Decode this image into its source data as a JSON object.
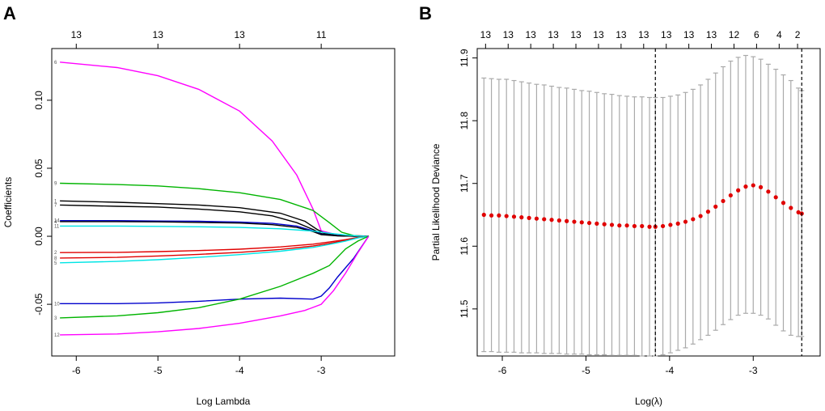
{
  "chart_data": [
    {
      "panel_label": "A",
      "type": "line",
      "title": "",
      "xlabel": "Log Lambda",
      "ylabel": "Coefficients",
      "xlim": [
        -6.3,
        -2.1
      ],
      "ylim": [
        -0.088,
        0.138
      ],
      "x_ticks": [
        -6,
        -5,
        -4,
        -3
      ],
      "x_tick_labels": [
        "-6",
        "-5",
        "-4",
        "-3"
      ],
      "y_ticks": [
        -0.05,
        0.0,
        0.05,
        0.1
      ],
      "y_tick_labels": [
        "-0.05",
        "0.00",
        "0.05",
        "0.10"
      ],
      "top_axis": {
        "ticks": [
          -6,
          -5,
          -4,
          -3
        ],
        "labels": [
          "13",
          "13",
          "13",
          "11"
        ]
      },
      "series": [
        {
          "name": "6",
          "color": "#ff00ff",
          "x": [
            -6.2,
            -5.5,
            -5.0,
            -4.5,
            -4.0,
            -3.6,
            -3.3,
            -3.1,
            -3.0,
            -2.8,
            -2.6,
            -2.42
          ],
          "values": [
            0.128,
            0.124,
            0.118,
            0.108,
            0.092,
            0.07,
            0.045,
            0.02,
            0.004,
            0.001,
            0.0005,
            0.0
          ]
        },
        {
          "name": "9",
          "color": "#00b400",
          "x": [
            -6.2,
            -5.5,
            -5.0,
            -4.5,
            -4.0,
            -3.5,
            -3.1,
            -2.9,
            -2.75,
            -2.6,
            -2.42
          ],
          "values": [
            0.039,
            0.038,
            0.037,
            0.035,
            0.032,
            0.027,
            0.019,
            0.01,
            0.003,
            0.0005,
            0.0
          ]
        },
        {
          "name": "1",
          "color": "#000000",
          "x": [
            -6.2,
            -5.5,
            -5.0,
            -4.5,
            -4.0,
            -3.5,
            -3.2,
            -3.05,
            -2.95,
            -2.8,
            -2.6,
            -2.42
          ],
          "values": [
            0.026,
            0.025,
            0.024,
            0.023,
            0.021,
            0.017,
            0.011,
            0.005,
            0.002,
            0.0005,
            0.0001,
            0.0
          ]
        },
        {
          "name": "7",
          "color": "#000000",
          "x": [
            -6.2,
            -5.5,
            -5.0,
            -4.5,
            -4.0,
            -3.6,
            -3.3,
            -3.1,
            -3.0,
            -2.8,
            -2.6,
            -2.42
          ],
          "values": [
            0.023,
            0.022,
            0.0215,
            0.02,
            0.018,
            0.015,
            0.01,
            0.005,
            0.002,
            0.0005,
            0.0001,
            0.0
          ]
        },
        {
          "name": "14",
          "color": "#0000cc",
          "x": [
            -6.2,
            -5.5,
            -5.0,
            -4.5,
            -4.0,
            -3.6,
            -3.3,
            -3.1,
            -3.0,
            -2.8,
            -2.6,
            -2.42
          ],
          "values": [
            0.0115,
            0.0115,
            0.0112,
            0.011,
            0.0105,
            0.0095,
            0.0075,
            0.004,
            0.0015,
            0.0004,
            0.0001,
            0.0
          ]
        },
        {
          "name": "4",
          "color": "#000000",
          "x": [
            -6.2,
            -5.5,
            -5.0,
            -4.5,
            -4.0,
            -3.6,
            -3.3,
            -3.1,
            -3.0,
            -2.8,
            -2.6,
            -2.42
          ],
          "values": [
            0.0108,
            0.0108,
            0.0106,
            0.0102,
            0.0097,
            0.0085,
            0.0065,
            0.0035,
            0.0012,
            0.0003,
            0.0001,
            0.0
          ]
        },
        {
          "name": "11",
          "color": "#00e5e5",
          "x": [
            -6.2,
            -5.5,
            -5.0,
            -4.5,
            -4.0,
            -3.5,
            -3.1,
            -2.9,
            -2.7,
            -2.55,
            -2.42
          ],
          "values": [
            0.0075,
            0.0075,
            0.0073,
            0.007,
            0.0065,
            0.0055,
            0.0038,
            0.0022,
            0.0009,
            0.0002,
            0.0
          ]
        },
        {
          "name": "2",
          "color": "#e00000",
          "x": [
            -6.2,
            -5.5,
            -5.0,
            -4.5,
            -4.0,
            -3.5,
            -3.1,
            -2.9,
            -2.7,
            -2.55,
            -2.42
          ],
          "values": [
            -0.012,
            -0.0118,
            -0.0113,
            -0.0105,
            -0.0095,
            -0.0078,
            -0.0058,
            -0.0042,
            -0.0025,
            -0.0008,
            0.0
          ]
        },
        {
          "name": "8",
          "color": "#e00000",
          "x": [
            -6.2,
            -5.5,
            -5.0,
            -4.5,
            -4.0,
            -3.5,
            -3.1,
            -2.9,
            -2.7,
            -2.55,
            -2.42
          ],
          "values": [
            -0.016,
            -0.0155,
            -0.0145,
            -0.0133,
            -0.0118,
            -0.0097,
            -0.0072,
            -0.0052,
            -0.003,
            -0.001,
            0.0
          ]
        },
        {
          "name": "5",
          "color": "#00e5e5",
          "x": [
            -6.2,
            -5.5,
            -5.0,
            -4.5,
            -4.0,
            -3.5,
            -3.1,
            -2.9,
            -2.7,
            -2.55,
            -2.42
          ],
          "values": [
            -0.0195,
            -0.0185,
            -0.0172,
            -0.0155,
            -0.0135,
            -0.011,
            -0.0082,
            -0.006,
            -0.0035,
            -0.0012,
            0.0
          ]
        },
        {
          "name": "10",
          "color": "#0000cc",
          "x": [
            -6.2,
            -5.5,
            -5.0,
            -4.5,
            -4.0,
            -3.5,
            -3.1,
            -3.0,
            -2.9,
            -2.8,
            -2.6,
            -2.42
          ],
          "values": [
            -0.0495,
            -0.0495,
            -0.049,
            -0.0478,
            -0.0462,
            -0.0455,
            -0.0462,
            -0.044,
            -0.038,
            -0.03,
            -0.016,
            0.0
          ]
        },
        {
          "name": "3",
          "color": "#00b400",
          "x": [
            -6.2,
            -5.5,
            -5.0,
            -4.5,
            -4.0,
            -3.5,
            -3.1,
            -2.9,
            -2.7,
            -2.55,
            -2.42
          ],
          "values": [
            -0.06,
            -0.0585,
            -0.0562,
            -0.0525,
            -0.0462,
            -0.0368,
            -0.0272,
            -0.0215,
            -0.0092,
            -0.0035,
            0.0
          ]
        },
        {
          "name": "12",
          "color": "#ff00ff",
          "x": [
            -6.2,
            -5.5,
            -5.0,
            -4.5,
            -4.0,
            -3.5,
            -3.2,
            -3.0,
            -2.85,
            -2.7,
            -2.55,
            -2.42
          ],
          "values": [
            -0.0725,
            -0.0718,
            -0.0702,
            -0.0678,
            -0.064,
            -0.0585,
            -0.0545,
            -0.05,
            -0.04,
            -0.027,
            -0.012,
            0.0
          ]
        }
      ]
    },
    {
      "panel_label": "B",
      "type": "scatter",
      "title": "",
      "xlabel": "Log(λ)",
      "ylabel": "Partial Likelihood Deviance",
      "xlim": [
        -6.3,
        -2.2
      ],
      "ylim": [
        11.425,
        11.915
      ],
      "x_ticks": [
        -6,
        -5,
        -4,
        -3
      ],
      "x_tick_labels": [
        "-6",
        "-5",
        "-4",
        "-3"
      ],
      "y_ticks": [
        11.5,
        11.6,
        11.7,
        11.8,
        11.9
      ],
      "y_tick_labels": [
        "11.5",
        "11.6",
        "11.7",
        "11.8",
        "11.9"
      ],
      "top_axis": {
        "ticks": [
          -6.2,
          -5.93,
          -5.66,
          -5.39,
          -5.12,
          -4.85,
          -4.58,
          -4.31,
          -4.04,
          -3.77,
          -3.5,
          -3.23,
          -2.96,
          -2.69,
          -2.47
        ],
        "labels": [
          "13",
          "13",
          "13",
          "13",
          "13",
          "13",
          "13",
          "13",
          "13",
          "13",
          "13",
          "12",
          "6",
          "4",
          "2"
        ]
      },
      "vlines": [
        -4.17,
        -2.42
      ],
      "point_color": "#e00000",
      "errorbar_color": "#aaaaaa",
      "x": [
        -6.22,
        -6.13,
        -6.04,
        -5.95,
        -5.86,
        -5.77,
        -5.68,
        -5.59,
        -5.5,
        -5.41,
        -5.32,
        -5.23,
        -5.14,
        -5.05,
        -4.96,
        -4.87,
        -4.78,
        -4.69,
        -4.6,
        -4.51,
        -4.42,
        -4.33,
        -4.24,
        -4.17,
        -4.08,
        -3.99,
        -3.9,
        -3.81,
        -3.72,
        -3.63,
        -3.54,
        -3.45,
        -3.36,
        -3.27,
        -3.18,
        -3.09,
        -3.0,
        -2.91,
        -2.82,
        -2.73,
        -2.64,
        -2.55,
        -2.46,
        -2.42
      ],
      "values": [
        11.65,
        11.649,
        11.649,
        11.648,
        11.647,
        11.646,
        11.645,
        11.644,
        11.643,
        11.642,
        11.641,
        11.64,
        11.639,
        11.638,
        11.637,
        11.636,
        11.635,
        11.634,
        11.633,
        11.633,
        11.632,
        11.632,
        11.631,
        11.631,
        11.632,
        11.634,
        11.636,
        11.639,
        11.643,
        11.648,
        11.655,
        11.663,
        11.672,
        11.681,
        11.689,
        11.695,
        11.697,
        11.694,
        11.687,
        11.678,
        11.669,
        11.661,
        11.654,
        11.652
      ],
      "lower": [
        11.432,
        11.432,
        11.431,
        11.431,
        11.431,
        11.43,
        11.43,
        11.43,
        11.429,
        11.429,
        11.429,
        11.428,
        11.428,
        11.428,
        11.427,
        11.427,
        11.427,
        11.426,
        11.426,
        11.426,
        11.426,
        11.425,
        11.425,
        11.425,
        11.427,
        11.43,
        11.434,
        11.438,
        11.444,
        11.451,
        11.458,
        11.466,
        11.475,
        11.483,
        11.49,
        11.493,
        11.493,
        11.49,
        11.484,
        11.474,
        11.465,
        11.458,
        11.456,
        11.456
      ],
      "upper": [
        11.868,
        11.867,
        11.866,
        11.866,
        11.864,
        11.862,
        11.86,
        11.858,
        11.857,
        11.855,
        11.853,
        11.852,
        11.85,
        11.848,
        11.847,
        11.845,
        11.843,
        11.842,
        11.84,
        11.839,
        11.838,
        11.838,
        11.837,
        11.837,
        11.837,
        11.839,
        11.841,
        11.845,
        11.85,
        11.857,
        11.866,
        11.876,
        11.886,
        11.895,
        11.901,
        11.904,
        11.902,
        11.898,
        11.89,
        11.882,
        11.873,
        11.864,
        11.852,
        11.848
      ]
    }
  ]
}
